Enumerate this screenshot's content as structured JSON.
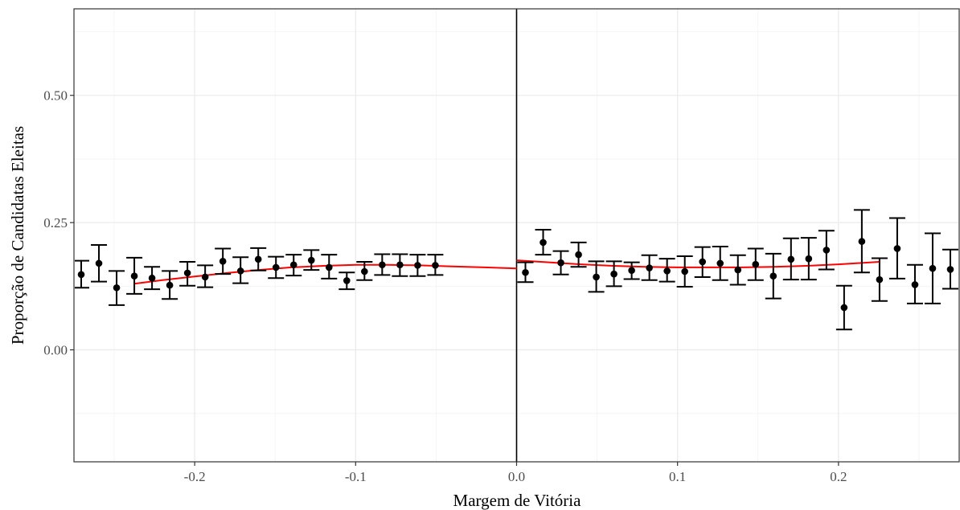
{
  "chart_data": {
    "type": "scatter",
    "title": "",
    "xlabel": "Margem de Vitória",
    "ylabel": "Proporção de Candidatas Eleitas",
    "xlim": [
      -0.275,
      0.275
    ],
    "ylim": [
      -0.22,
      0.67
    ],
    "x_ticks": [
      -0.2,
      -0.1,
      0.0,
      0.1,
      0.2
    ],
    "x_tick_labels": [
      "-0.2",
      "-0.1",
      "0.0",
      "0.1",
      "0.2"
    ],
    "y_ticks": [
      0.0,
      0.25,
      0.5
    ],
    "y_tick_labels": [
      "0.00",
      "0.25",
      "0.50"
    ],
    "grid": true,
    "cutoff_line_x": 0.0,
    "colors": {
      "points": "#000000",
      "fit": "#ff0000",
      "cutoff": "#000000"
    },
    "points": [
      {
        "x": -0.2705,
        "y": 0.148,
        "lo": 0.122,
        "hi": 0.175
      },
      {
        "x": -0.2595,
        "y": 0.17,
        "lo": 0.134,
        "hi": 0.206
      },
      {
        "x": -0.2485,
        "y": 0.122,
        "lo": 0.088,
        "hi": 0.155
      },
      {
        "x": -0.2375,
        "y": 0.145,
        "lo": 0.11,
        "hi": 0.181
      },
      {
        "x": -0.2265,
        "y": 0.141,
        "lo": 0.119,
        "hi": 0.163
      },
      {
        "x": -0.2155,
        "y": 0.127,
        "lo": 0.1,
        "hi": 0.155
      },
      {
        "x": -0.2045,
        "y": 0.151,
        "lo": 0.126,
        "hi": 0.173
      },
      {
        "x": -0.1935,
        "y": 0.143,
        "lo": 0.123,
        "hi": 0.166
      },
      {
        "x": -0.1825,
        "y": 0.174,
        "lo": 0.149,
        "hi": 0.199
      },
      {
        "x": -0.1715,
        "y": 0.155,
        "lo": 0.131,
        "hi": 0.182
      },
      {
        "x": -0.1605,
        "y": 0.178,
        "lo": 0.156,
        "hi": 0.2
      },
      {
        "x": -0.1495,
        "y": 0.162,
        "lo": 0.141,
        "hi": 0.183
      },
      {
        "x": -0.1385,
        "y": 0.167,
        "lo": 0.146,
        "hi": 0.187
      },
      {
        "x": -0.1275,
        "y": 0.176,
        "lo": 0.157,
        "hi": 0.196
      },
      {
        "x": -0.1165,
        "y": 0.162,
        "lo": 0.14,
        "hi": 0.187
      },
      {
        "x": -0.1055,
        "y": 0.136,
        "lo": 0.119,
        "hi": 0.152
      },
      {
        "x": -0.0945,
        "y": 0.154,
        "lo": 0.137,
        "hi": 0.173
      },
      {
        "x": -0.0835,
        "y": 0.167,
        "lo": 0.147,
        "hi": 0.188
      },
      {
        "x": -0.0725,
        "y": 0.167,
        "lo": 0.145,
        "hi": 0.188
      },
      {
        "x": -0.0615,
        "y": 0.166,
        "lo": 0.145,
        "hi": 0.187
      },
      {
        "x": -0.0505,
        "y": 0.166,
        "lo": 0.147,
        "hi": 0.187
      },
      {
        "x": 0.0055,
        "y": 0.152,
        "lo": 0.133,
        "hi": 0.172
      },
      {
        "x": 0.0165,
        "y": 0.211,
        "lo": 0.187,
        "hi": 0.236
      },
      {
        "x": 0.0275,
        "y": 0.171,
        "lo": 0.148,
        "hi": 0.194
      },
      {
        "x": 0.0385,
        "y": 0.187,
        "lo": 0.163,
        "hi": 0.211
      },
      {
        "x": 0.0495,
        "y": 0.143,
        "lo": 0.114,
        "hi": 0.174
      },
      {
        "x": 0.0605,
        "y": 0.149,
        "lo": 0.125,
        "hi": 0.174
      },
      {
        "x": 0.0715,
        "y": 0.156,
        "lo": 0.139,
        "hi": 0.172
      },
      {
        "x": 0.0825,
        "y": 0.161,
        "lo": 0.137,
        "hi": 0.186
      },
      {
        "x": 0.0935,
        "y": 0.155,
        "lo": 0.134,
        "hi": 0.179
      },
      {
        "x": 0.1045,
        "y": 0.154,
        "lo": 0.124,
        "hi": 0.184
      },
      {
        "x": 0.1155,
        "y": 0.173,
        "lo": 0.143,
        "hi": 0.202
      },
      {
        "x": 0.1265,
        "y": 0.17,
        "lo": 0.137,
        "hi": 0.203
      },
      {
        "x": 0.1375,
        "y": 0.157,
        "lo": 0.128,
        "hi": 0.186
      },
      {
        "x": 0.1485,
        "y": 0.168,
        "lo": 0.137,
        "hi": 0.199
      },
      {
        "x": 0.1595,
        "y": 0.145,
        "lo": 0.101,
        "hi": 0.189
      },
      {
        "x": 0.1705,
        "y": 0.178,
        "lo": 0.138,
        "hi": 0.219
      },
      {
        "x": 0.1815,
        "y": 0.179,
        "lo": 0.138,
        "hi": 0.22
      },
      {
        "x": 0.1925,
        "y": 0.196,
        "lo": 0.158,
        "hi": 0.234
      },
      {
        "x": 0.2035,
        "y": 0.083,
        "lo": 0.04,
        "hi": 0.126
      },
      {
        "x": 0.2145,
        "y": 0.213,
        "lo": 0.152,
        "hi": 0.275
      },
      {
        "x": 0.2255,
        "y": 0.138,
        "lo": 0.096,
        "hi": 0.18
      },
      {
        "x": 0.2365,
        "y": 0.199,
        "lo": 0.14,
        "hi": 0.259
      },
      {
        "x": 0.2475,
        "y": 0.128,
        "lo": 0.091,
        "hi": 0.167
      },
      {
        "x": 0.2585,
        "y": 0.16,
        "lo": 0.091,
        "hi": 0.229
      },
      {
        "x": 0.2695,
        "y": 0.158,
        "lo": 0.12,
        "hi": 0.197
      }
    ],
    "fit_left": {
      "x": [
        -0.2375,
        -0.22,
        -0.2,
        -0.18,
        -0.16,
        -0.14,
        -0.12,
        -0.1,
        -0.08,
        -0.06,
        -0.04,
        -0.02,
        0.0
      ],
      "y": [
        0.13,
        0.137,
        0.144,
        0.151,
        0.157,
        0.162,
        0.165,
        0.167,
        0.167,
        0.166,
        0.164,
        0.162,
        0.16
      ]
    },
    "fit_right": {
      "x": [
        0.0,
        0.02,
        0.04,
        0.06,
        0.08,
        0.1,
        0.12,
        0.14,
        0.16,
        0.18,
        0.2,
        0.2255
      ],
      "y": [
        0.176,
        0.172,
        0.168,
        0.165,
        0.163,
        0.162,
        0.162,
        0.162,
        0.163,
        0.165,
        0.168,
        0.173
      ]
    }
  }
}
